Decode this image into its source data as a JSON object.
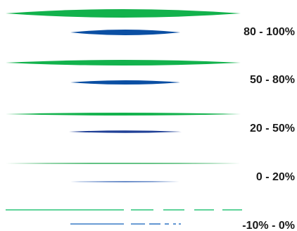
{
  "legend": {
    "colors": {
      "primary_green": "#12b24c",
      "primary_blue": "#0b4fa3",
      "light_green": "#5fd39a",
      "light_blue": "#3a7cc6"
    },
    "entries": [
      {
        "label": "80 - 100%",
        "style": "taper-thick"
      },
      {
        "label": "50 - 80%",
        "style": "taper-medium"
      },
      {
        "label": "20 - 50%",
        "style": "taper-thin"
      },
      {
        "label": "0 - 20%",
        "style": "hairline"
      },
      {
        "label": "-10% - 0%",
        "style": "dashed"
      }
    ]
  }
}
